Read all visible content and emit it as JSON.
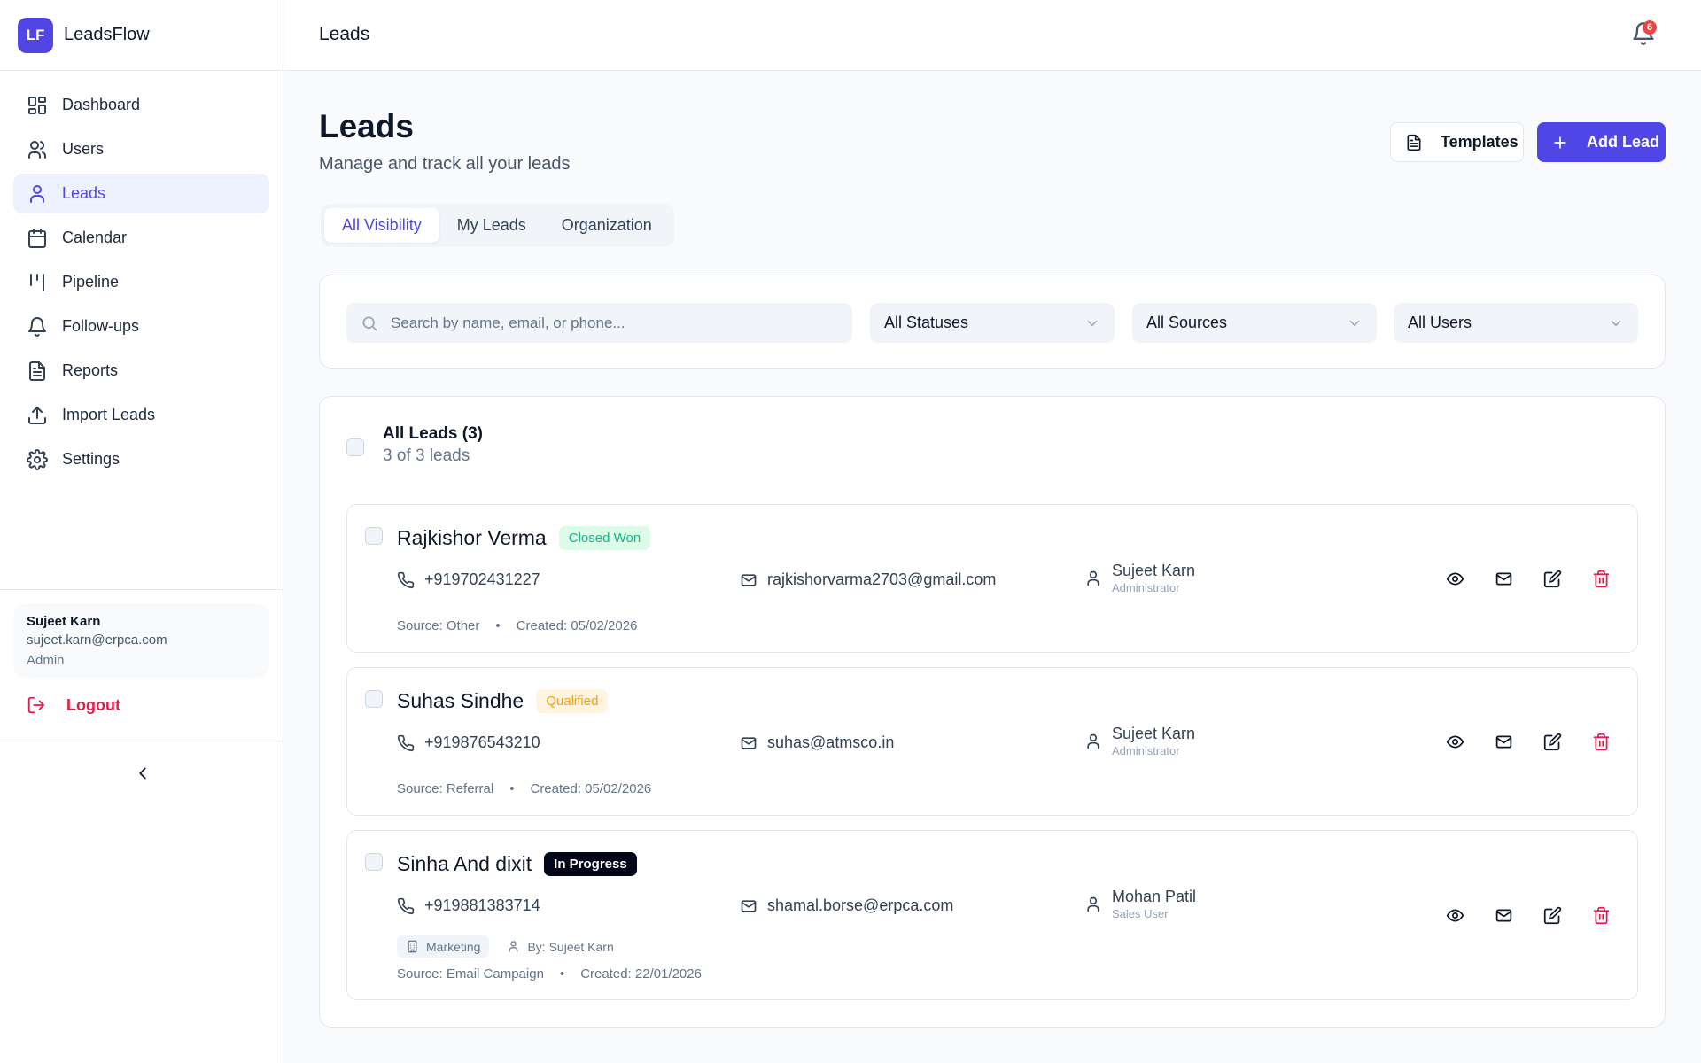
{
  "app": {
    "name": "LeadsFlow",
    "logo_text": "LF",
    "accent": "#4f46e5"
  },
  "sidebar": {
    "items": [
      {
        "label": "Dashboard",
        "icon": "dashboard-icon",
        "active": false
      },
      {
        "label": "Users",
        "icon": "users-icon",
        "active": false
      },
      {
        "label": "Leads",
        "icon": "user-icon",
        "active": true
      },
      {
        "label": "Calendar",
        "icon": "calendar-icon",
        "active": false
      },
      {
        "label": "Pipeline",
        "icon": "pipeline-icon",
        "active": false
      },
      {
        "label": "Follow-ups",
        "icon": "bell-icon",
        "active": false
      },
      {
        "label": "Reports",
        "icon": "file-text-icon",
        "active": false
      },
      {
        "label": "Import Leads",
        "icon": "upload-icon",
        "active": false
      },
      {
        "label": "Settings",
        "icon": "gear-icon",
        "active": false
      }
    ],
    "user": {
      "name": "Sujeet Karn",
      "email": "sujeet.karn@erpca.com",
      "role": "Admin"
    },
    "logout_label": "Logout"
  },
  "topbar": {
    "title": "Leads",
    "notification_count": "6"
  },
  "page": {
    "title": "Leads",
    "subtitle": "Manage and track all your leads",
    "templates_label": "Templates",
    "add_lead_label": "Add Lead",
    "tabs": [
      {
        "label": "All Visibility",
        "active": true
      },
      {
        "label": "My Leads",
        "active": false
      },
      {
        "label": "Organization",
        "active": false
      }
    ]
  },
  "filters": {
    "search_placeholder": "Search by name, email, or phone...",
    "search_value": "",
    "status": "All Statuses",
    "source": "All Sources",
    "user": "All Users"
  },
  "list": {
    "title": "All Leads (3)",
    "count_text": "3 of 3 leads",
    "leads": [
      {
        "name": "Rajkishor Verma",
        "status": "Closed Won",
        "status_bg": "#dcfce7",
        "status_color": "#10b981",
        "phone": "+919702431227",
        "email": "rajkishorvarma2703@gmail.com",
        "assignee": "Sujeet Karn",
        "assignee_role": "Administrator",
        "source": "Source: Other",
        "created": "Created: 05/02/2026"
      },
      {
        "name": "Suhas Sindhe",
        "status": "Qualified",
        "status_bg": "#fff4e0",
        "status_color": "#f59e0b",
        "phone": "+919876543210",
        "email": "suhas@atmsco.in",
        "assignee": "Sujeet Karn",
        "assignee_role": "Administrator",
        "source": "Source: Referral",
        "created": "Created: 05/02/2026"
      },
      {
        "name": "Sinha And dixit",
        "status": "In Progress",
        "status_bg": "#020617",
        "status_color": "#ffffff",
        "phone": "+919881383714",
        "email": "shamal.borse@erpca.com",
        "assignee": "Mohan Patil",
        "assignee_role": "Sales User",
        "department": "Marketing",
        "created_by": "By: Sujeet Karn",
        "source": "Source: Email Campaign",
        "created": "Created: 22/01/2026"
      }
    ]
  }
}
